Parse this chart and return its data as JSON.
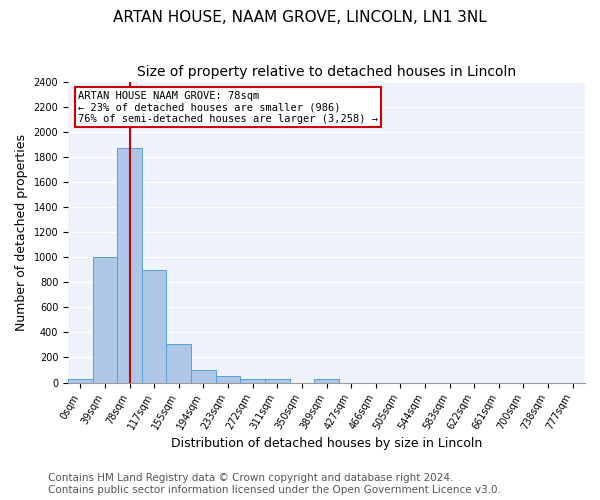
{
  "title": "ARTAN HOUSE, NAAM GROVE, LINCOLN, LN1 3NL",
  "subtitle": "Size of property relative to detached houses in Lincoln",
  "xlabel": "Distribution of detached houses by size in Lincoln",
  "ylabel": "Number of detached properties",
  "bin_labels": [
    "0sqm",
    "39sqm",
    "78sqm",
    "117sqm",
    "155sqm",
    "194sqm",
    "233sqm",
    "272sqm",
    "311sqm",
    "350sqm",
    "389sqm",
    "427sqm",
    "466sqm",
    "505sqm",
    "544sqm",
    "583sqm",
    "622sqm",
    "661sqm",
    "700sqm",
    "738sqm",
    "777sqm"
  ],
  "bar_values": [
    25,
    1000,
    1870,
    900,
    310,
    100,
    50,
    30,
    25,
    0,
    25,
    0,
    0,
    0,
    0,
    0,
    0,
    0,
    0,
    0,
    0
  ],
  "bar_color": "#aec6e8",
  "bar_edge_color": "#5a9fd4",
  "vline_x": 2,
  "vline_color": "#cc0000",
  "annotation_text": "ARTAN HOUSE NAAM GROVE: 78sqm\n← 23% of detached houses are smaller (986)\n76% of semi-detached houses are larger (3,258) →",
  "annotation_box_color": "#ffffff",
  "annotation_box_edge": "#cc0000",
  "ylim": [
    0,
    2400
  ],
  "yticks": [
    0,
    200,
    400,
    600,
    800,
    1000,
    1200,
    1400,
    1600,
    1800,
    2000,
    2200,
    2400
  ],
  "footer_text": "Contains HM Land Registry data © Crown copyright and database right 2024.\nContains public sector information licensed under the Open Government Licence v3.0.",
  "background_color": "#eef3fb",
  "grid_color": "#ffffff",
  "title_fontsize": 11,
  "subtitle_fontsize": 10,
  "tick_fontsize": 7,
  "ylabel_fontsize": 9,
  "xlabel_fontsize": 9,
  "footer_fontsize": 7.5
}
